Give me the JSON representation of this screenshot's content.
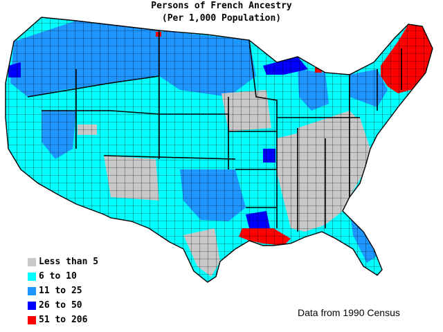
{
  "title": "Persons of French Ancestry",
  "subtitle": "(Per 1,000 Population)",
  "source": "Data from 1990 Census",
  "colors": {
    "less_than_5": "#c8c8c8",
    "6_to_10": "#00ffff",
    "11_to_25": "#1e96ff",
    "26_to_50": "#0000ff",
    "51_to_206": "#ff0000",
    "border": "#000000"
  },
  "legend": [
    {
      "label": "Less than 5",
      "color": "#c8c8c8"
    },
    {
      "label": "6 to 10",
      "color": "#00ffff"
    },
    {
      "label": "11 to 25",
      "color": "#1e96ff"
    },
    {
      "label": "26 to 50",
      "color": "#0000ff"
    },
    {
      "label": "51 to 206",
      "color": "#ff0000"
    }
  ],
  "map": {
    "region": "Contiguous United States, county level",
    "highlights": [
      {
        "area": "New England (Maine, New Hampshire, Vermont, Massachusetts, Rhode Island)",
        "class": "51 to 206"
      },
      {
        "area": "South Louisiana (Acadiana)",
        "class": "51 to 206"
      },
      {
        "area": "Northern Michigan / Upper Peninsula",
        "class": "26 to 50"
      },
      {
        "area": "Southeast (Kentucky, Tennessee, Alabama, Georgia, Carolinas)",
        "class": "Less than 5"
      },
      {
        "area": "Pacific Northwest and West",
        "class": "6 to 10"
      }
    ]
  }
}
